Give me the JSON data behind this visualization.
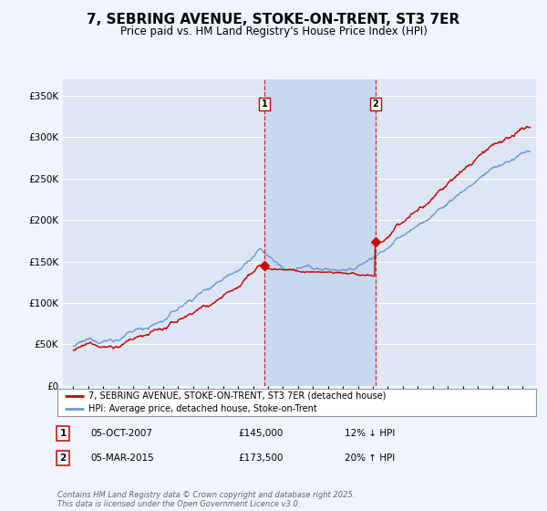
{
  "title": "7, SEBRING AVENUE, STOKE-ON-TRENT, ST3 7ER",
  "subtitle": "Price paid vs. HM Land Registry's House Price Index (HPI)",
  "title_fontsize": 11,
  "subtitle_fontsize": 8.5,
  "bg_color": "#f0f4ff",
  "plot_bg_color": "#dce6f5",
  "shade_color": "#c8d8ef",
  "legend_label_red": "7, SEBRING AVENUE, STOKE-ON-TRENT, ST3 7ER (detached house)",
  "legend_label_blue": "HPI: Average price, detached house, Stoke-on-Trent",
  "purchase1_date": "05-OCT-2007",
  "purchase1_price": 145000,
  "purchase1_pct": "12% ↓ HPI",
  "purchase2_date": "05-MAR-2015",
  "purchase2_price": 173500,
  "purchase2_pct": "20% ↑ HPI",
  "footer": "Contains HM Land Registry data © Crown copyright and database right 2025.\nThis data is licensed under the Open Government Licence v3.0.",
  "ylim": [
    0,
    370000
  ],
  "yticks": [
    0,
    50000,
    100000,
    150000,
    200000,
    250000,
    300000,
    350000
  ],
  "red_color": "#cc0000",
  "blue_color": "#7099cc",
  "vline_color": "#cc0000",
  "grid_color": "#ffffff",
  "purchase1_year": 2007.75,
  "purchase2_year": 2015.17,
  "xstart": 1995,
  "xend": 2025
}
